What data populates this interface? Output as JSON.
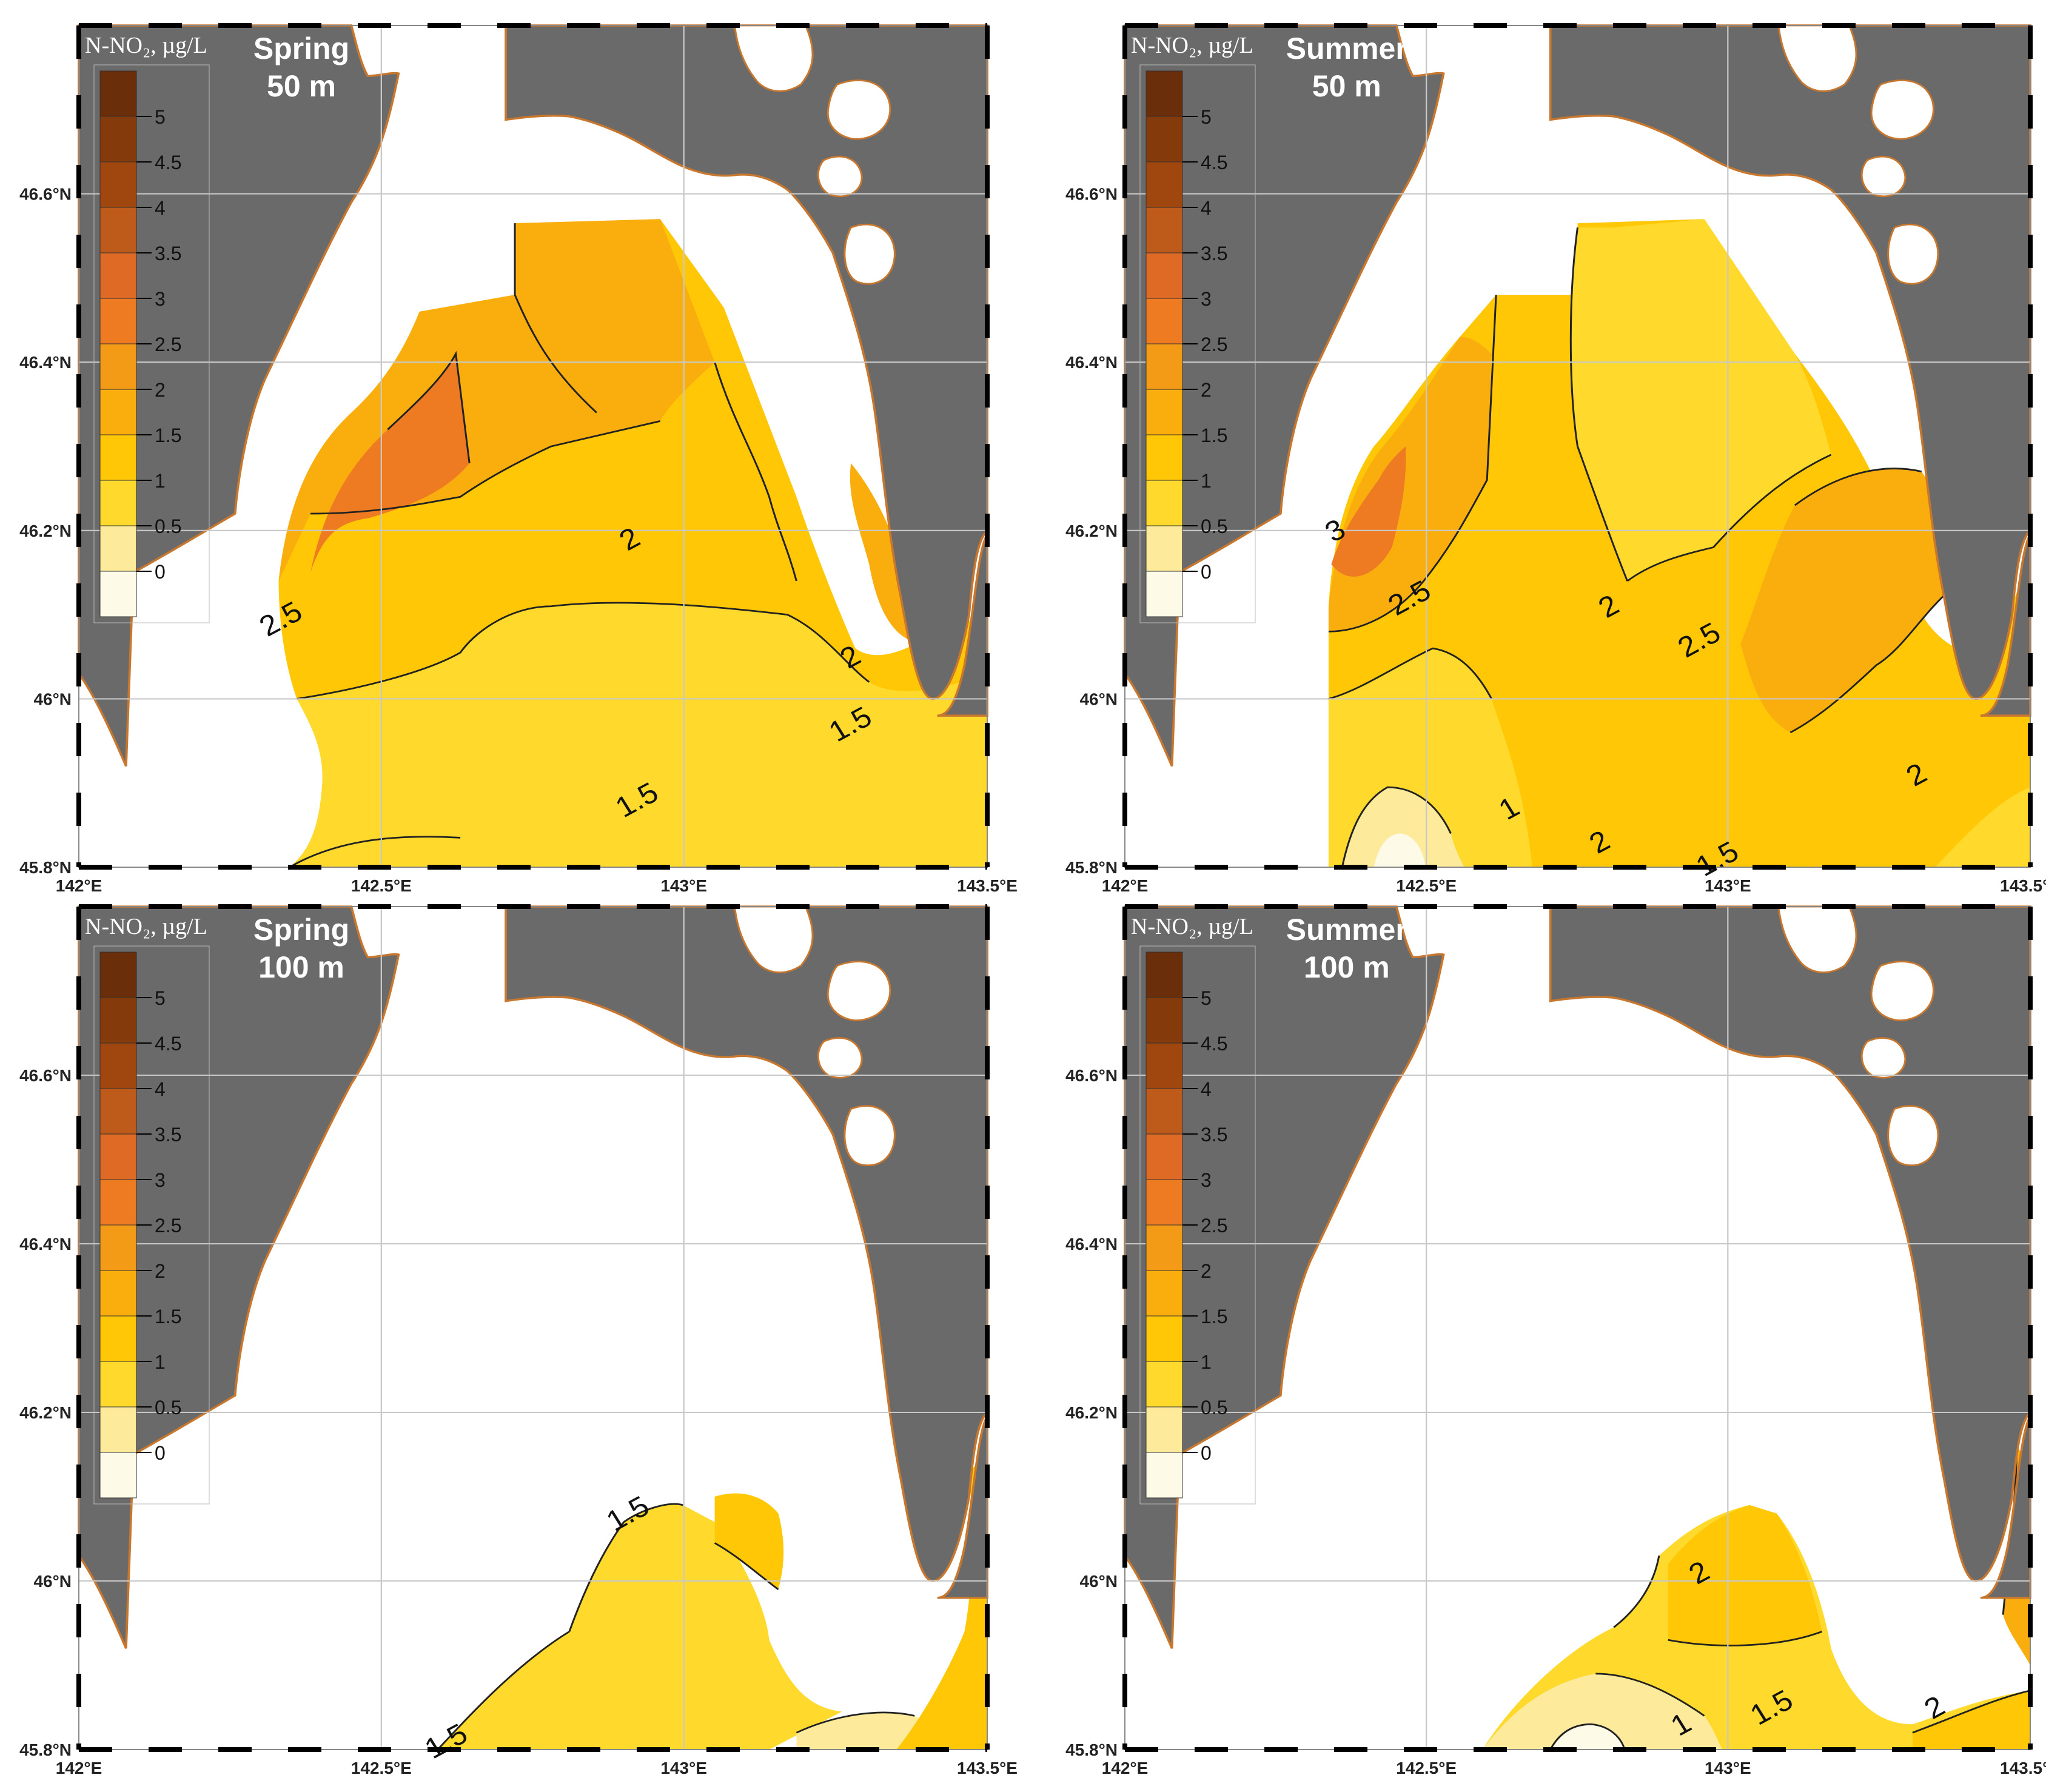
{
  "legend": {
    "title": "N-NO₂, µg/L",
    "labels": [
      "5",
      "4.5",
      "4",
      "3.5",
      "3",
      "2.5",
      "2",
      "1.5",
      "1",
      "0.5",
      "0"
    ],
    "colors": [
      "#6B2E0A",
      "#853A0C",
      "#A0470F",
      "#BE5A1A",
      "#DE6A26",
      "#EE7B22",
      "#F39B16",
      "#FAAE0E",
      "#FFC705",
      "#FFDA2C",
      "#FDEB9B",
      "#FEFAE8"
    ]
  },
  "axes": {
    "lon_ticks": [
      "142°E",
      "142.5°E",
      "143°E",
      "143.5°E"
    ],
    "lat_ticks": [
      "46.6°N",
      "46.4°N",
      "46.2°N",
      "46°N",
      "45.8°N"
    ]
  },
  "colors": {
    "land": "#6A6A6A",
    "coast": "#C8772E",
    "sea": "#FFFFFF",
    "grid": "#C8C8C8",
    "contour": "#222222"
  },
  "panels": [
    {
      "season": "Spring",
      "depth": "50 m",
      "contour_labels": [
        "2.5",
        "2",
        "2",
        "1.5",
        "1.5"
      ]
    },
    {
      "season": "Summer",
      "depth": "50 m",
      "contour_labels": [
        "3",
        "2.5",
        "2",
        "2.5",
        "1.5",
        "1",
        "2",
        "2"
      ]
    },
    {
      "season": "Spring",
      "depth": "100 m",
      "contour_labels": [
        "1.5",
        "1.5"
      ]
    },
    {
      "season": "Summer",
      "depth": "100 m",
      "contour_labels": [
        "2",
        "1",
        "1.5",
        "2"
      ]
    }
  ]
}
